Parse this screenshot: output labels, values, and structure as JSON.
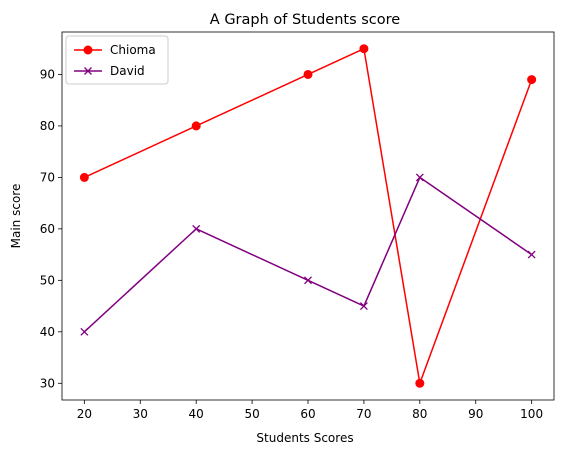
{
  "chart_data": {
    "type": "line",
    "title": "A Graph of Students score",
    "xlabel": "Students Scores",
    "ylabel": "Main score",
    "xlim": [
      16,
      104
    ],
    "ylim": [
      26.75,
      98.25
    ],
    "x_ticks": [
      20,
      30,
      40,
      50,
      60,
      70,
      80,
      90,
      100
    ],
    "y_ticks": [
      30,
      40,
      50,
      60,
      70,
      80,
      90
    ],
    "grid": false,
    "legend_position": "top-left",
    "series": [
      {
        "name": "Chioma",
        "color": "#ff0000",
        "marker": "circle",
        "x": [
          20,
          40,
          60,
          70,
          80,
          100
        ],
        "y": [
          70,
          80,
          90,
          95,
          30,
          89
        ]
      },
      {
        "name": "David",
        "color": "#800080",
        "marker": "x",
        "x": [
          20,
          40,
          60,
          70,
          80,
          100
        ],
        "y": [
          40,
          60,
          50,
          45,
          70,
          55
        ]
      }
    ]
  }
}
